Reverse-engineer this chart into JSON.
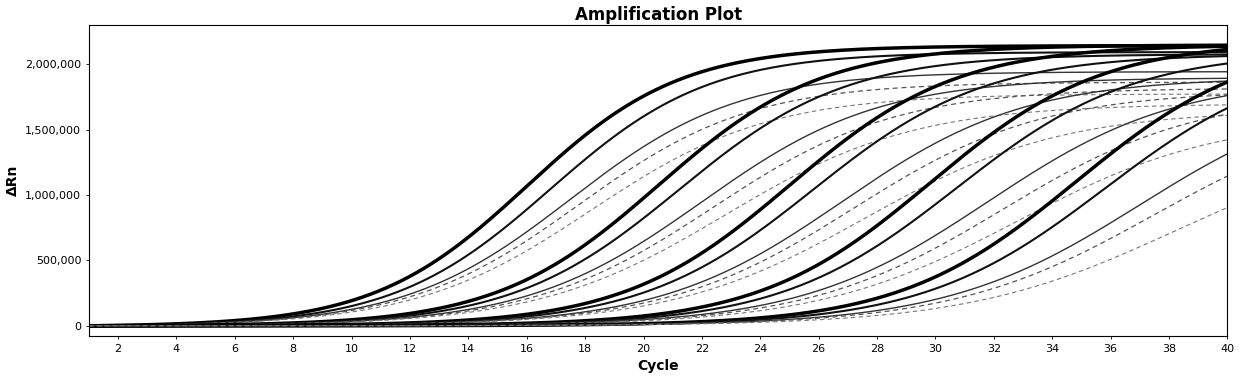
{
  "title": "Amplification Plot",
  "xlabel": "Cycle",
  "ylabel": "ΔRn",
  "xlim": [
    1,
    40
  ],
  "ylim": [
    -80000,
    2300000
  ],
  "xticks": [
    2,
    4,
    6,
    8,
    10,
    12,
    14,
    16,
    18,
    20,
    22,
    24,
    26,
    28,
    30,
    32,
    34,
    36,
    38,
    40
  ],
  "yticks": [
    0,
    500000,
    1000000,
    1500000,
    2000000
  ],
  "ytick_labels": [
    "0",
    "500,000",
    "1,000,000",
    "1,500,000",
    "2,000,000"
  ],
  "background_color": "#ffffff",
  "curves": [
    {
      "midpoint": 16.0,
      "upper": 2150000,
      "k": 0.38,
      "style": "solid",
      "color": "#000000",
      "lw": 2.5
    },
    {
      "midpoint": 16.8,
      "upper": 2100000,
      "k": 0.37,
      "style": "solid",
      "color": "#111111",
      "lw": 1.5
    },
    {
      "midpoint": 17.5,
      "upper": 1950000,
      "k": 0.35,
      "style": "solid",
      "color": "#333333",
      "lw": 1.0
    },
    {
      "midpoint": 17.8,
      "upper": 1870000,
      "k": 0.34,
      "style": "dashed",
      "color": "#555555",
      "lw": 0.9
    },
    {
      "midpoint": 18.2,
      "upper": 1780000,
      "k": 0.33,
      "style": "dashed",
      "color": "#777777",
      "lw": 0.8
    },
    {
      "midpoint": 20.5,
      "upper": 2150000,
      "k": 0.36,
      "style": "solid",
      "color": "#000000",
      "lw": 2.5
    },
    {
      "midpoint": 21.2,
      "upper": 2080000,
      "k": 0.35,
      "style": "solid",
      "color": "#111111",
      "lw": 1.5
    },
    {
      "midpoint": 22.0,
      "upper": 1900000,
      "k": 0.33,
      "style": "solid",
      "color": "#333333",
      "lw": 1.0
    },
    {
      "midpoint": 22.4,
      "upper": 1820000,
      "k": 0.32,
      "style": "dashed",
      "color": "#555555",
      "lw": 0.9
    },
    {
      "midpoint": 22.8,
      "upper": 1700000,
      "k": 0.31,
      "style": "dashed",
      "color": "#777777",
      "lw": 0.8
    },
    {
      "midpoint": 25.0,
      "upper": 2150000,
      "k": 0.35,
      "style": "solid",
      "color": "#000000",
      "lw": 2.5
    },
    {
      "midpoint": 25.8,
      "upper": 2080000,
      "k": 0.34,
      "style": "solid",
      "color": "#111111",
      "lw": 1.5
    },
    {
      "midpoint": 26.8,
      "upper": 1900000,
      "k": 0.32,
      "style": "solid",
      "color": "#333333",
      "lw": 1.0
    },
    {
      "midpoint": 27.2,
      "upper": 1800000,
      "k": 0.31,
      "style": "dashed",
      "color": "#555555",
      "lw": 0.9
    },
    {
      "midpoint": 27.6,
      "upper": 1650000,
      "k": 0.3,
      "style": "dashed",
      "color": "#777777",
      "lw": 0.8
    },
    {
      "midpoint": 29.8,
      "upper": 2180000,
      "k": 0.34,
      "style": "solid",
      "color": "#000000",
      "lw": 2.5
    },
    {
      "midpoint": 30.7,
      "upper": 2100000,
      "k": 0.33,
      "style": "solid",
      "color": "#111111",
      "lw": 1.5
    },
    {
      "midpoint": 31.8,
      "upper": 1900000,
      "k": 0.31,
      "style": "solid",
      "color": "#333333",
      "lw": 1.0
    },
    {
      "midpoint": 32.3,
      "upper": 1780000,
      "k": 0.3,
      "style": "dashed",
      "color": "#555555",
      "lw": 0.9
    },
    {
      "midpoint": 32.8,
      "upper": 1600000,
      "k": 0.29,
      "style": "dashed",
      "color": "#777777",
      "lw": 0.8
    },
    {
      "midpoint": 34.8,
      "upper": 2200000,
      "k": 0.33,
      "style": "solid",
      "color": "#000000",
      "lw": 2.5
    },
    {
      "midpoint": 35.8,
      "upper": 2100000,
      "k": 0.32,
      "style": "solid",
      "color": "#111111",
      "lw": 1.5
    },
    {
      "midpoint": 37.0,
      "upper": 1850000,
      "k": 0.3,
      "style": "solid",
      "color": "#333333",
      "lw": 1.0
    },
    {
      "midpoint": 37.5,
      "upper": 1700000,
      "k": 0.29,
      "style": "dashed",
      "color": "#555555",
      "lw": 0.9
    },
    {
      "midpoint": 38.2,
      "upper": 1450000,
      "k": 0.28,
      "style": "dashed",
      "color": "#777777",
      "lw": 0.8
    }
  ]
}
